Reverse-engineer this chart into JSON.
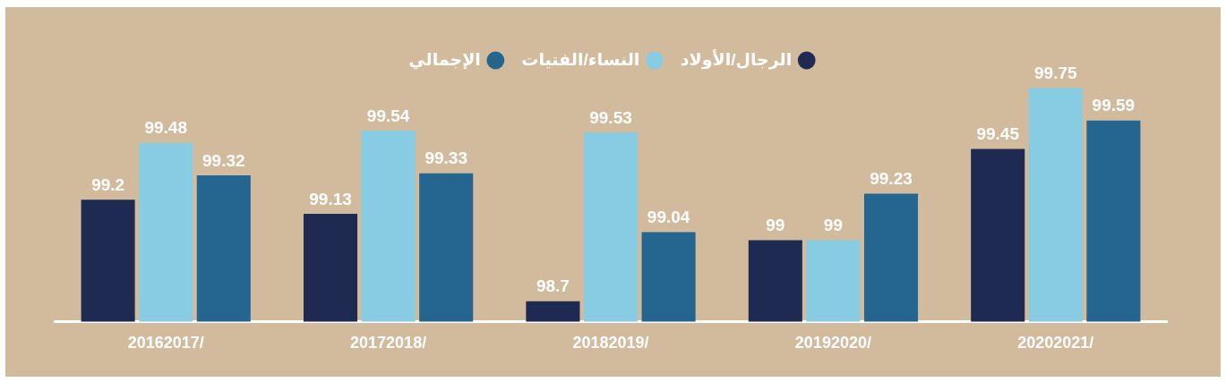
{
  "chart_data": {
    "type": "bar",
    "categories": [
      "20162017/",
      "20172018/",
      "20182019/",
      "20192020/",
      "20202021/"
    ],
    "series": [
      {
        "name": "الرجال/الأولاد",
        "color": "#1e2a52",
        "values": [
          99.2,
          99.13,
          98.7,
          99,
          99.45
        ]
      },
      {
        "name": "النساء/الفتيات",
        "color": "#87cce3",
        "values": [
          99.48,
          99.54,
          99.53,
          99,
          99.75
        ]
      },
      {
        "name": "الإجمالي",
        "color": "#246690",
        "values": [
          99.32,
          99.33,
          99.04,
          99.23,
          99.59
        ]
      }
    ],
    "data_labels": true,
    "legend": "top",
    "grid": false
  }
}
